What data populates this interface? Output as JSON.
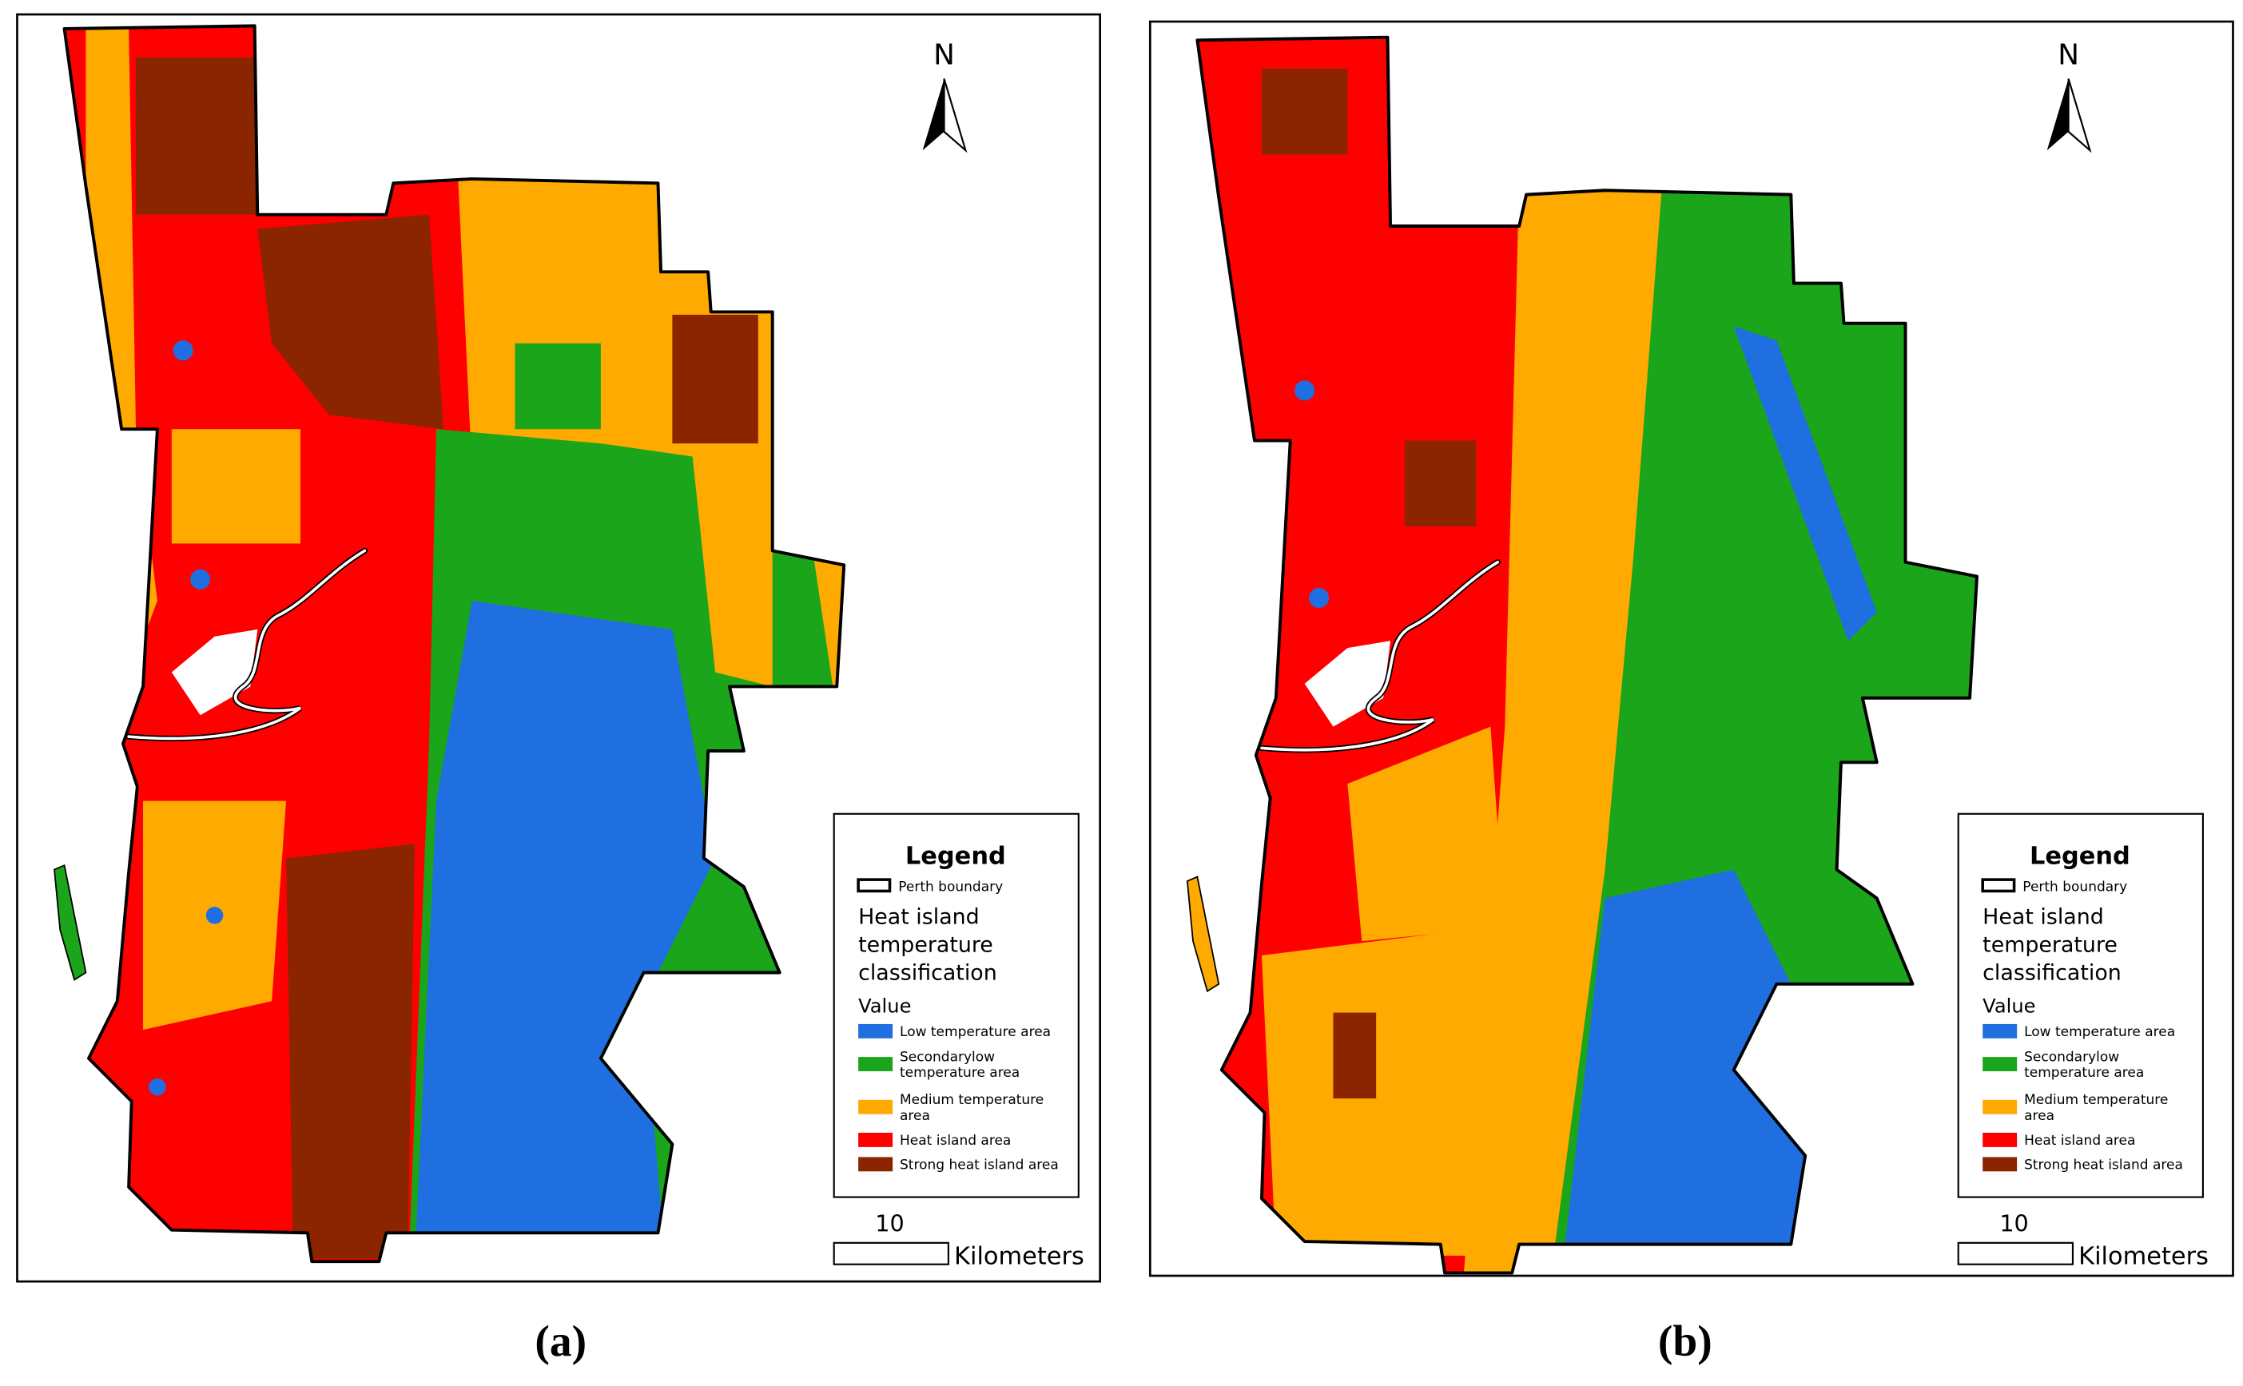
{
  "panels": [
    {
      "label": "(a)",
      "north": "N",
      "legend": {
        "title": "Legend",
        "boundary": "Perth boundary",
        "heading": [
          "Heat island",
          "temperature",
          "classification"
        ],
        "value_heading": "Value",
        "classes": [
          {
            "lines": [
              "Low temperature area"
            ],
            "color": "#1f6fe0"
          },
          {
            "lines": [
              "Secondarylow",
              "temperature area"
            ],
            "color": "#1aa51a"
          },
          {
            "lines": [
              "Medium temperature",
              "area"
            ],
            "color": "#ffaa00"
          },
          {
            "lines": [
              "Heat island area"
            ],
            "color": "#ff0000"
          },
          {
            "lines": [
              "Strong heat island area"
            ],
            "color": "#8b2500"
          }
        ]
      },
      "scale": {
        "value": 10,
        "unit": "Kilometers"
      }
    },
    {
      "label": "(b)",
      "north": "N",
      "legend": {
        "title": "Legend",
        "boundary": "Perth boundary",
        "heading": [
          "Heat island",
          "temperature",
          "classification"
        ],
        "value_heading": "Value",
        "classes": [
          {
            "lines": [
              "Low temperature area"
            ],
            "color": "#1f6fe0"
          },
          {
            "lines": [
              "Secondarylow",
              "temperature area"
            ],
            "color": "#1aa51a"
          },
          {
            "lines": [
              "Medium temperature",
              "area"
            ],
            "color": "#ffaa00"
          },
          {
            "lines": [
              "Heat island area"
            ],
            "color": "#ff0000"
          },
          {
            "lines": [
              "Strong heat island area"
            ],
            "color": "#8b2500"
          }
        ]
      },
      "scale": {
        "value": 10,
        "unit": "Kilometers"
      }
    }
  ]
}
